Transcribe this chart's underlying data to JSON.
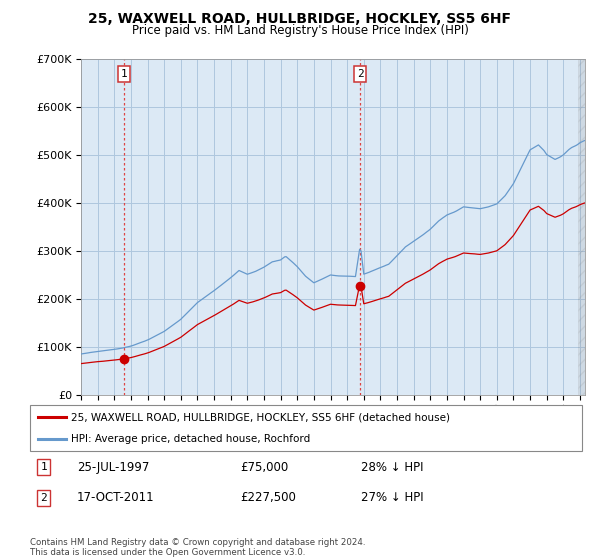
{
  "title": "25, WAXWELL ROAD, HULLBRIDGE, HOCKLEY, SS5 6HF",
  "subtitle": "Price paid vs. HM Land Registry's House Price Index (HPI)",
  "legend_label_red": "25, WAXWELL ROAD, HULLBRIDGE, HOCKLEY, SS5 6HF (detached house)",
  "legend_label_blue": "HPI: Average price, detached house, Rochford",
  "annotation1_date": "25-JUL-1997",
  "annotation1_price": "£75,000",
  "annotation1_hpi": "28% ↓ HPI",
  "annotation2_date": "17-OCT-2011",
  "annotation2_price": "£227,500",
  "annotation2_hpi": "27% ↓ HPI",
  "footnote": "Contains HM Land Registry data © Crown copyright and database right 2024.\nThis data is licensed under the Open Government Licence v3.0.",
  "ylim": [
    0,
    700000
  ],
  "yticks": [
    0,
    100000,
    200000,
    300000,
    400000,
    500000,
    600000,
    700000
  ],
  "background_color": "#ffffff",
  "plot_bg_color": "#dce9f5",
  "grid_color": "#aec6de",
  "red_color": "#cc0000",
  "blue_color": "#6699cc",
  "sale1_x": 1997.57,
  "sale1_y": 75000,
  "sale2_x": 2011.79,
  "sale2_y": 227500,
  "xmin": 1995.0,
  "xmax": 2025.3
}
